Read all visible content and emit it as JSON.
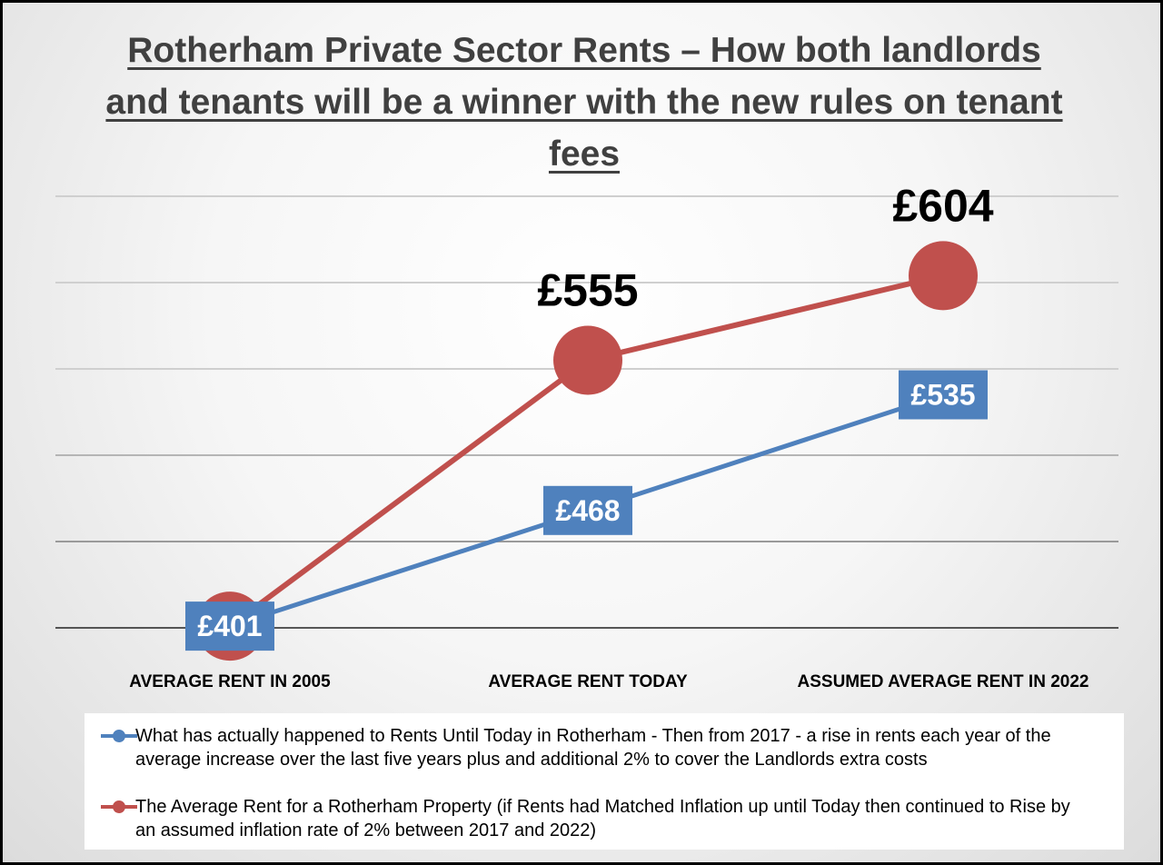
{
  "chart_data": {
    "type": "line",
    "title": "Rotherham Private Sector Rents – How both landlords and tenants will be a winner with the new rules on tenant fees",
    "categories": [
      "AVERAGE RENT IN 2005",
      "AVERAGE RENT TODAY",
      "ASSUMED AVERAGE RENT IN 2022"
    ],
    "series": [
      {
        "name": "What has actually happened to Rents Until Today in Rotherham - Then from 2017 - a rise in rents each year of the average increase over the last five years plus and additional 2% to cover the Landlords extra costs",
        "color": "#4f81bd",
        "values": [
          401,
          468,
          535
        ],
        "labels": [
          "£401",
          "£468",
          "£535"
        ]
      },
      {
        "name": "The Average Rent for a Rotherham Property (if Rents had Matched Inflation up until Today then continued to Rise by an assumed inflation rate of 2% between 2017 and 2022)",
        "color": "#c0504d",
        "values": [
          401,
          555,
          604
        ],
        "labels": [
          "",
          "£555",
          "£604"
        ]
      }
    ],
    "ylim": [
      400,
      660
    ],
    "grid": true,
    "legend_position": "bottom"
  }
}
